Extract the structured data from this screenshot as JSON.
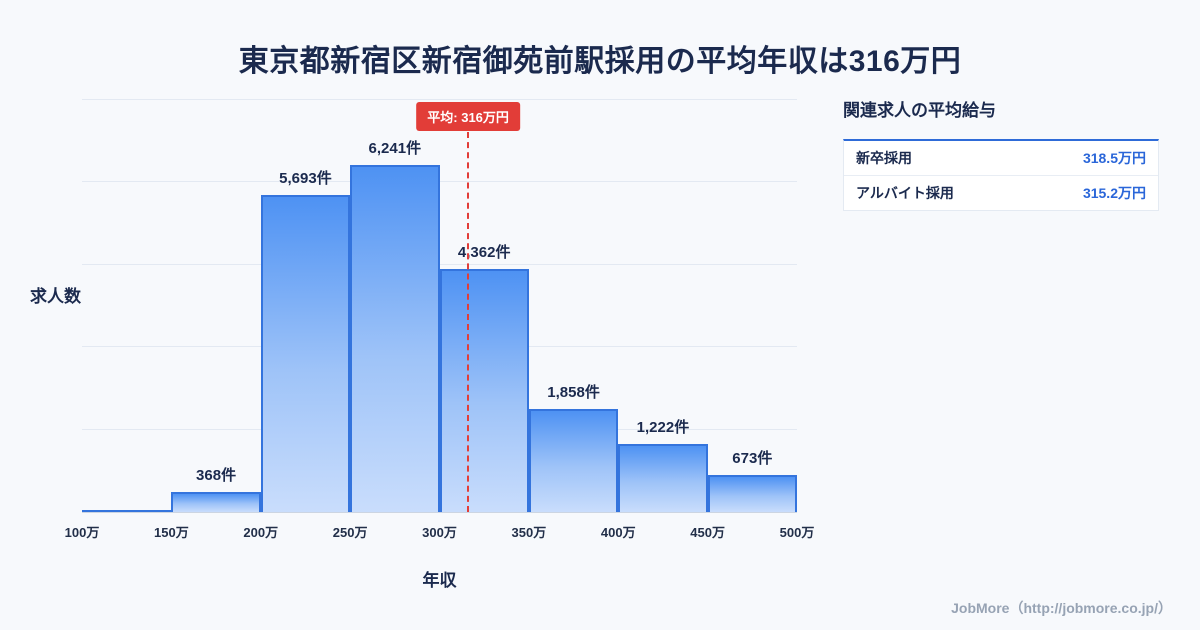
{
  "title": "東京都新宿区新宿御苑前駅採用の平均年収は316万円",
  "chart_data": {
    "type": "bar",
    "title": "東京都新宿区新宿御苑前駅採用の平均年収は316万円",
    "xlabel": "年収",
    "ylabel": "求人数",
    "x_range": [
      100,
      500
    ],
    "x_ticks": [
      "100万",
      "150万",
      "200万",
      "250万",
      "300万",
      "350万",
      "400万",
      "450万",
      "500万"
    ],
    "bins": [
      {
        "range": "100万-150万",
        "count": 30,
        "label": ""
      },
      {
        "range": "150万-200万",
        "count": 368,
        "label": "368件"
      },
      {
        "range": "200万-250万",
        "count": 5693,
        "label": "5,693件"
      },
      {
        "range": "250万-300万",
        "count": 6241,
        "label": "6,241件"
      },
      {
        "range": "300万-350万",
        "count": 4362,
        "label": "4,362件"
      },
      {
        "range": "350万-400万",
        "count": 1858,
        "label": "1,858件"
      },
      {
        "range": "400万-450万",
        "count": 1222,
        "label": "1,222件"
      },
      {
        "range": "450万-500万",
        "count": 673,
        "label": "673件"
      }
    ],
    "ylim": [
      0,
      7400
    ],
    "grid": true,
    "legend": "none",
    "average": {
      "value": 316,
      "label": "平均: 316万円"
    }
  },
  "side_panel": {
    "title": "関連求人の平均給与",
    "rows": [
      {
        "label": "新卒採用",
        "value": "318.5万円"
      },
      {
        "label": "アルバイト採用",
        "value": "315.2万円"
      }
    ]
  },
  "footer": {
    "credit": "JobMore（http://jobmore.co.jp/）"
  },
  "colors": {
    "background": "#f7f9fc",
    "title_navy": "#1b2a4e",
    "bar_border_blue": "#3474dd",
    "bar_gradient_top": "#4e92f3",
    "bar_gradient_bottom": "#c9ddfc",
    "average_red": "#e23d38",
    "value_blue": "#2a66d9",
    "footer_gray": "#97a3b4"
  }
}
